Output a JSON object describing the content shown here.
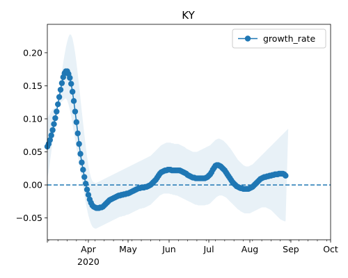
{
  "chart_data": {
    "type": "line",
    "title": "KY",
    "xlabel": "",
    "ylabel": "",
    "x_start": "2020-03-01",
    "x_end": "2020-10-01",
    "ylim": [
      -0.083,
      0.243
    ],
    "y_ticks": [
      -0.05,
      0.0,
      0.05,
      0.1,
      0.15,
      0.2
    ],
    "y_tick_labels": [
      "−0.05",
      "0.00",
      "0.05",
      "0.10",
      "0.15",
      "0.20"
    ],
    "x_ticks": [
      {
        "date": "2020-04-01",
        "label": "Apr",
        "sublabel": "2020"
      },
      {
        "date": "2020-05-01",
        "label": "May",
        "sublabel": ""
      },
      {
        "date": "2020-06-01",
        "label": "Jun",
        "sublabel": ""
      },
      {
        "date": "2020-07-01",
        "label": "Jul",
        "sublabel": ""
      },
      {
        "date": "2020-08-01",
        "label": "Aug",
        "sublabel": ""
      },
      {
        "date": "2020-09-01",
        "label": "Sep",
        "sublabel": ""
      },
      {
        "date": "2020-10-01",
        "label": "Oct",
        "sublabel": ""
      }
    ],
    "legend_location": "top-right",
    "reference_line": {
      "y": 0.0,
      "style": "dashed"
    },
    "series": [
      {
        "name": "growth_rate",
        "color": "#1f77b4",
        "band_color": "#1f77b4",
        "start_date": "2020-03-01",
        "values": [
          0.058,
          0.062,
          0.068,
          0.075,
          0.083,
          0.092,
          0.101,
          0.111,
          0.122,
          0.133,
          0.144,
          0.154,
          0.163,
          0.169,
          0.172,
          0.172,
          0.168,
          0.162,
          0.153,
          0.141,
          0.127,
          0.111,
          0.095,
          0.078,
          0.062,
          0.047,
          0.034,
          0.023,
          0.012,
          0.002,
          -0.007,
          -0.015,
          -0.022,
          -0.027,
          -0.031,
          -0.033,
          -0.034,
          -0.035,
          -0.035,
          -0.035,
          -0.034,
          -0.034,
          -0.033,
          -0.031,
          -0.029,
          -0.027,
          -0.025,
          -0.023,
          -0.022,
          -0.021,
          -0.02,
          -0.019,
          -0.018,
          -0.017,
          -0.016,
          -0.016,
          -0.015,
          -0.015,
          -0.014,
          -0.014,
          -0.013,
          -0.013,
          -0.012,
          -0.011,
          -0.01,
          -0.009,
          -0.008,
          -0.007,
          -0.006,
          -0.005,
          -0.005,
          -0.004,
          -0.004,
          -0.004,
          -0.003,
          -0.003,
          -0.002,
          -0.001,
          0.0,
          0.002,
          0.004,
          0.006,
          0.008,
          0.011,
          0.014,
          0.017,
          0.019,
          0.02,
          0.021,
          0.022,
          0.022,
          0.023,
          0.023,
          0.023,
          0.022,
          0.022,
          0.022,
          0.022,
          0.022,
          0.022,
          0.022,
          0.021,
          0.02,
          0.019,
          0.018,
          0.017,
          0.015,
          0.014,
          0.013,
          0.012,
          0.011,
          0.011,
          0.01,
          0.01,
          0.01,
          0.01,
          0.01,
          0.01,
          0.01,
          0.01,
          0.011,
          0.012,
          0.014,
          0.016,
          0.019,
          0.023,
          0.026,
          0.029,
          0.03,
          0.03,
          0.029,
          0.028,
          0.026,
          0.024,
          0.022,
          0.019,
          0.016,
          0.013,
          0.01,
          0.007,
          0.004,
          0.002,
          0.0,
          -0.002,
          -0.003,
          -0.004,
          -0.005,
          -0.005,
          -0.006,
          -0.006,
          -0.006,
          -0.006,
          -0.006,
          -0.005,
          -0.004,
          -0.003,
          -0.001,
          0.001,
          0.003,
          0.005,
          0.007,
          0.009,
          0.01,
          0.011,
          0.012,
          0.012,
          0.013,
          0.013,
          0.014,
          0.014,
          0.015,
          0.015,
          0.016,
          0.016,
          0.016,
          0.017,
          0.017,
          0.017,
          0.017,
          0.016,
          0.014
        ],
        "band_upper": [
          0.01,
          0.02,
          0.035,
          0.05,
          0.065,
          0.08,
          0.095,
          0.11,
          0.125,
          0.14,
          0.155,
          0.17,
          0.185,
          0.197,
          0.208,
          0.217,
          0.224,
          0.228,
          0.227,
          0.222,
          0.212,
          0.2,
          0.185,
          0.168,
          0.15,
          0.131,
          0.112,
          0.094,
          0.076,
          0.059,
          0.043,
          0.03,
          0.019,
          0.011,
          0.006,
          0.004,
          0.003,
          0.003,
          0.004,
          0.005,
          0.006,
          0.007,
          0.008,
          0.009,
          0.01,
          0.011,
          0.012,
          0.013,
          0.014,
          0.015,
          0.016,
          0.017,
          0.018,
          0.019,
          0.02,
          0.021,
          0.022,
          0.023,
          0.024,
          0.025,
          0.026,
          0.027,
          0.028,
          0.029,
          0.03,
          0.031,
          0.032,
          0.033,
          0.034,
          0.035,
          0.036,
          0.037,
          0.038,
          0.039,
          0.04,
          0.041,
          0.042,
          0.043,
          0.044,
          0.046,
          0.048,
          0.05,
          0.052,
          0.054,
          0.056,
          0.058,
          0.06,
          0.061,
          0.062,
          0.063,
          0.064,
          0.064,
          0.064,
          0.064,
          0.063,
          0.063,
          0.062,
          0.062,
          0.062,
          0.062,
          0.061,
          0.06,
          0.059,
          0.058,
          0.057,
          0.055,
          0.054,
          0.053,
          0.052,
          0.051,
          0.05,
          0.05,
          0.05,
          0.05,
          0.051,
          0.052,
          0.053,
          0.054,
          0.055,
          0.056,
          0.057,
          0.058,
          0.059,
          0.06,
          0.062,
          0.064,
          0.066,
          0.068,
          0.069,
          0.07,
          0.07,
          0.069,
          0.068,
          0.067,
          0.065,
          0.063,
          0.061,
          0.058,
          0.056,
          0.053,
          0.05,
          0.047,
          0.044,
          0.041,
          0.038,
          0.036,
          0.034,
          0.032,
          0.03,
          0.029,
          0.028,
          0.028,
          0.028,
          0.029,
          0.03,
          0.031,
          0.033,
          0.035,
          0.037,
          0.039,
          0.041,
          0.043,
          0.045,
          0.047,
          0.049,
          0.051,
          0.053,
          0.055,
          0.057,
          0.059,
          0.061,
          0.063,
          0.065,
          0.067,
          0.069,
          0.071,
          0.073,
          0.075,
          0.077,
          0.079,
          0.081,
          0.083,
          0.085
        ],
        "band_lower": [
          0.1,
          0.104,
          0.108,
          0.112,
          0.114,
          0.116,
          0.117,
          0.118,
          0.12,
          0.122,
          0.124,
          0.126,
          0.128,
          0.13,
          0.131,
          0.128,
          0.122,
          0.114,
          0.104,
          0.092,
          0.08,
          0.068,
          0.056,
          0.044,
          0.032,
          0.02,
          0.008,
          -0.004,
          -0.016,
          -0.027,
          -0.037,
          -0.046,
          -0.053,
          -0.059,
          -0.063,
          -0.065,
          -0.066,
          -0.066,
          -0.065,
          -0.064,
          -0.063,
          -0.062,
          -0.061,
          -0.06,
          -0.059,
          -0.058,
          -0.057,
          -0.056,
          -0.055,
          -0.054,
          -0.053,
          -0.052,
          -0.051,
          -0.05,
          -0.049,
          -0.048,
          -0.048,
          -0.047,
          -0.047,
          -0.046,
          -0.045,
          -0.045,
          -0.044,
          -0.043,
          -0.042,
          -0.041,
          -0.04,
          -0.039,
          -0.038,
          -0.037,
          -0.036,
          -0.036,
          -0.035,
          -0.035,
          -0.034,
          -0.033,
          -0.032,
          -0.031,
          -0.03,
          -0.028,
          -0.026,
          -0.024,
          -0.022,
          -0.02,
          -0.018,
          -0.016,
          -0.015,
          -0.014,
          -0.013,
          -0.013,
          -0.013,
          -0.013,
          -0.013,
          -0.014,
          -0.014,
          -0.015,
          -0.015,
          -0.016,
          -0.016,
          -0.017,
          -0.018,
          -0.019,
          -0.02,
          -0.021,
          -0.022,
          -0.023,
          -0.024,
          -0.025,
          -0.026,
          -0.027,
          -0.028,
          -0.029,
          -0.03,
          -0.03,
          -0.031,
          -0.031,
          -0.031,
          -0.031,
          -0.031,
          -0.031,
          -0.03,
          -0.03,
          -0.029,
          -0.028,
          -0.026,
          -0.024,
          -0.022,
          -0.02,
          -0.018,
          -0.017,
          -0.016,
          -0.016,
          -0.016,
          -0.017,
          -0.018,
          -0.019,
          -0.021,
          -0.023,
          -0.025,
          -0.027,
          -0.029,
          -0.031,
          -0.033,
          -0.035,
          -0.037,
          -0.038,
          -0.04,
          -0.041,
          -0.042,
          -0.043,
          -0.043,
          -0.043,
          -0.043,
          -0.043,
          -0.042,
          -0.041,
          -0.04,
          -0.039,
          -0.038,
          -0.037,
          -0.036,
          -0.035,
          -0.034,
          -0.034,
          -0.034,
          -0.034,
          -0.035,
          -0.036,
          -0.037,
          -0.038,
          -0.04,
          -0.042,
          -0.044,
          -0.046,
          -0.048,
          -0.05,
          -0.052,
          -0.053,
          -0.054,
          -0.055,
          -0.055
        ]
      }
    ]
  }
}
